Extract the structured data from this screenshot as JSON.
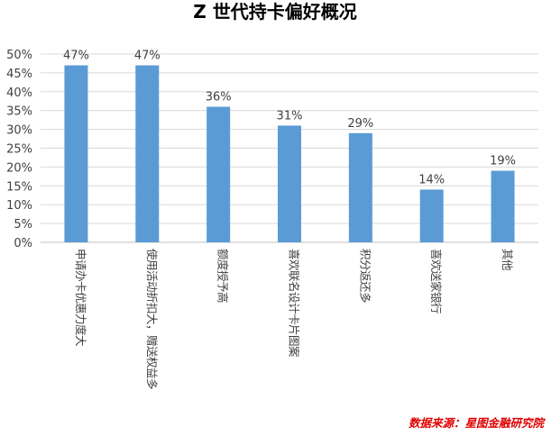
{
  "chart_data": {
    "type": "bar",
    "title": "Z 世代持卡偏好概况",
    "categories": [
      "申请办卡优惠力度大",
      "使用活动折扣大，赠送权益多",
      "额度授予高",
      "喜欢联名设计卡片图案",
      "积分返还多",
      "喜欢送家银行",
      "其他"
    ],
    "values": [
      47,
      47,
      36,
      31,
      29,
      14,
      19
    ],
    "data_labels": [
      "47%",
      "47%",
      "36%",
      "31%",
      "29%",
      "14%",
      "19%"
    ],
    "ylim": [
      0,
      50
    ],
    "y_ticks": [
      "0%",
      "5%",
      "10%",
      "15%",
      "20%",
      "25%",
      "30%",
      "35%",
      "40%",
      "45%",
      "50%"
    ],
    "grid": true,
    "legend": "none",
    "bar_color": "#5b9bd5",
    "xlabel": "",
    "ylabel": ""
  },
  "source": "数据来源：星图金融研究院"
}
